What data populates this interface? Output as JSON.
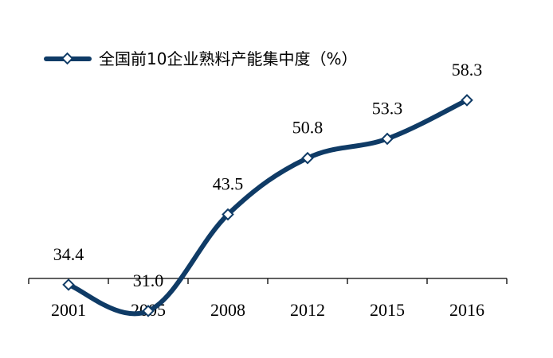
{
  "chart_data": {
    "type": "line",
    "title": "",
    "xlabel": "",
    "ylabel": "",
    "categories": [
      "2001",
      "2005",
      "2008",
      "2012",
      "2015",
      "2016"
    ],
    "series": [
      {
        "name": "全国前10企业熟料产能集中度（%）",
        "values": [
          34.4,
          31.0,
          43.5,
          50.8,
          53.3,
          58.3
        ],
        "color": "#0f3b66"
      }
    ],
    "data_labels": [
      "34.4",
      "31.0",
      "43.5",
      "50.8",
      "53.3",
      "58.3"
    ],
    "ylim": [
      28,
      62
    ],
    "grid": false,
    "legend_position": "top-left",
    "marker": "diamond-open"
  }
}
